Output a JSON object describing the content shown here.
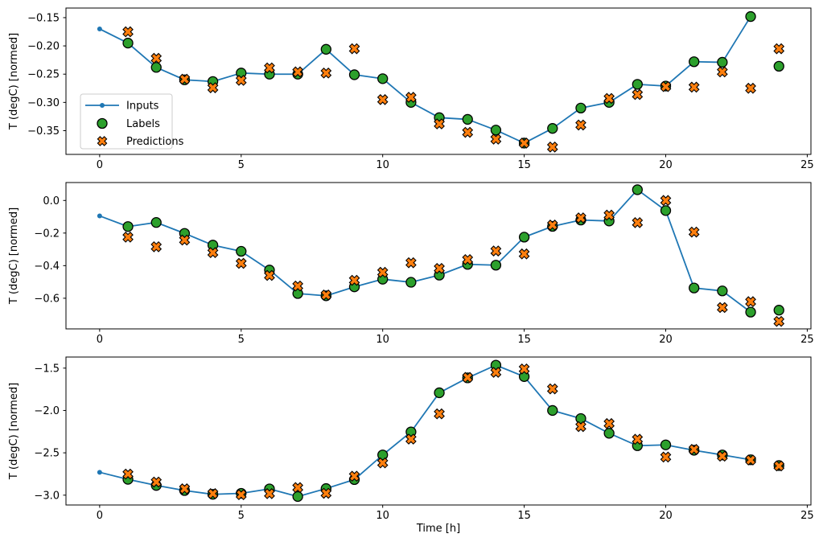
{
  "figure": {
    "xlabel": "Time [h]",
    "ylabel": "T (degC) [normed]",
    "xlim": [
      -1.19,
      25.13
    ],
    "x_ticks": [
      0,
      5,
      10,
      15,
      20,
      25
    ],
    "x_tick_labels": [
      "0",
      "5",
      "10",
      "15",
      "20",
      "25"
    ],
    "colors": {
      "inputs": "#1f77b4",
      "labels": "#2ca02c",
      "predictions": "#ff7f0e",
      "marker_edge": "#000000",
      "spine": "#000000",
      "text": "#000000",
      "legend_border": "#cccccc",
      "background": "#ffffff"
    },
    "legend": {
      "items": [
        {
          "label": "Inputs",
          "marker": "line"
        },
        {
          "label": "Labels",
          "marker": "circle"
        },
        {
          "label": "Predictions",
          "marker": "x"
        }
      ]
    }
  },
  "chart_data": [
    {
      "type": "line",
      "title": "",
      "ylabel": "T (degC) [normed]",
      "ylim": [
        -0.392,
        -0.133
      ],
      "y_ticks": [
        -0.15,
        -0.2,
        -0.25,
        -0.3,
        -0.35
      ],
      "y_tick_labels": [
        "−0.15",
        "−0.20",
        "−0.25",
        "−0.30",
        "−0.35"
      ],
      "series": [
        {
          "name": "Inputs",
          "marker": "dot-line",
          "x": [
            0,
            1,
            2,
            3,
            4,
            5,
            6,
            7,
            8,
            9,
            10,
            11,
            12,
            13,
            14,
            15,
            16,
            17,
            18,
            19,
            20,
            21,
            22,
            23
          ],
          "y": [
            -0.17,
            -0.195,
            -0.238,
            -0.26,
            -0.263,
            -0.248,
            -0.25,
            -0.25,
            -0.206,
            -0.251,
            -0.258,
            -0.3,
            -0.327,
            -0.33,
            -0.349,
            -0.372,
            -0.346,
            -0.31,
            -0.3,
            -0.268,
            -0.271,
            -0.228,
            -0.229,
            -0.148
          ]
        },
        {
          "name": "Labels",
          "marker": "circle",
          "x": [
            1,
            2,
            3,
            4,
            5,
            6,
            7,
            8,
            9,
            10,
            11,
            12,
            13,
            14,
            15,
            16,
            17,
            18,
            19,
            20,
            21,
            22,
            23,
            24
          ],
          "y": [
            -0.195,
            -0.238,
            -0.26,
            -0.263,
            -0.248,
            -0.25,
            -0.25,
            -0.206,
            -0.251,
            -0.258,
            -0.3,
            -0.327,
            -0.33,
            -0.349,
            -0.372,
            -0.346,
            -0.31,
            -0.3,
            -0.268,
            -0.271,
            -0.228,
            -0.229,
            -0.148,
            -0.236
          ]
        },
        {
          "name": "Predictions",
          "marker": "x",
          "x": [
            1,
            2,
            3,
            4,
            5,
            6,
            7,
            8,
            9,
            10,
            11,
            12,
            13,
            14,
            15,
            16,
            17,
            18,
            19,
            20,
            21,
            22,
            23,
            24
          ],
          "y": [
            -0.175,
            -0.222,
            -0.259,
            -0.274,
            -0.261,
            -0.239,
            -0.246,
            -0.248,
            -0.205,
            -0.295,
            -0.291,
            -0.338,
            -0.353,
            -0.365,
            -0.372,
            -0.379,
            -0.34,
            -0.293,
            -0.286,
            -0.272,
            -0.273,
            -0.246,
            -0.275,
            -0.205
          ]
        }
      ]
    },
    {
      "type": "line",
      "title": "",
      "ylabel": "T (degC) [normed]",
      "ylim": [
        -0.788,
        0.11
      ],
      "y_ticks": [
        0.0,
        -0.2,
        -0.4,
        -0.6
      ],
      "y_tick_labels": [
        "0.0",
        "−0.2",
        "−0.4",
        "−0.6"
      ],
      "series": [
        {
          "name": "Inputs",
          "marker": "dot-line",
          "x": [
            0,
            1,
            2,
            3,
            4,
            5,
            6,
            7,
            8,
            9,
            10,
            11,
            12,
            13,
            14,
            15,
            16,
            17,
            18,
            19,
            20,
            21,
            22,
            23
          ],
          "y": [
            -0.095,
            -0.16,
            -0.135,
            -0.202,
            -0.274,
            -0.312,
            -0.427,
            -0.571,
            -0.585,
            -0.53,
            -0.483,
            -0.502,
            -0.458,
            -0.392,
            -0.397,
            -0.225,
            -0.159,
            -0.12,
            -0.126,
            0.066,
            -0.062,
            -0.537,
            -0.555,
            -0.685
          ]
        },
        {
          "name": "Labels",
          "marker": "circle",
          "x": [
            1,
            2,
            3,
            4,
            5,
            6,
            7,
            8,
            9,
            10,
            11,
            12,
            13,
            14,
            15,
            16,
            17,
            18,
            19,
            20,
            21,
            22,
            23,
            24
          ],
          "y": [
            -0.16,
            -0.135,
            -0.202,
            -0.274,
            -0.312,
            -0.427,
            -0.571,
            -0.585,
            -0.53,
            -0.483,
            -0.502,
            -0.458,
            -0.392,
            -0.397,
            -0.225,
            -0.159,
            -0.12,
            -0.126,
            0.066,
            -0.062,
            -0.537,
            -0.555,
            -0.685,
            -0.673
          ]
        },
        {
          "name": "Predictions",
          "marker": "x",
          "x": [
            1,
            2,
            3,
            4,
            5,
            6,
            7,
            8,
            9,
            10,
            11,
            12,
            13,
            14,
            15,
            16,
            17,
            18,
            19,
            20,
            21,
            22,
            23,
            24
          ],
          "y": [
            -0.225,
            -0.284,
            -0.243,
            -0.32,
            -0.386,
            -0.46,
            -0.525,
            -0.58,
            -0.49,
            -0.441,
            -0.382,
            -0.417,
            -0.363,
            -0.31,
            -0.328,
            -0.151,
            -0.107,
            -0.09,
            -0.136,
            0.0,
            -0.194,
            -0.657,
            -0.621,
            -0.742
          ]
        }
      ]
    },
    {
      "type": "line",
      "title": "",
      "ylabel": "T (degC) [normed]",
      "ylim": [
        -3.116,
        -1.369
      ],
      "y_ticks": [
        -1.5,
        -2.0,
        -2.5,
        -3.0
      ],
      "y_tick_labels": [
        "−1.5",
        "−2.0",
        "−2.5",
        "−3.0"
      ],
      "series": [
        {
          "name": "Inputs",
          "marker": "dot-line",
          "x": [
            0,
            1,
            2,
            3,
            4,
            5,
            6,
            7,
            8,
            9,
            10,
            11,
            12,
            13,
            14,
            15,
            16,
            17,
            18,
            19,
            20,
            21,
            22,
            23
          ],
          "y": [
            -2.73,
            -2.813,
            -2.885,
            -2.945,
            -2.99,
            -2.978,
            -2.926,
            -3.016,
            -2.922,
            -2.816,
            -2.525,
            -2.253,
            -1.791,
            -1.615,
            -1.465,
            -1.6,
            -2.0,
            -2.095,
            -2.269,
            -2.416,
            -2.406,
            -2.47,
            -2.525,
            -2.582
          ]
        },
        {
          "name": "Labels",
          "marker": "circle",
          "x": [
            1,
            2,
            3,
            4,
            5,
            6,
            7,
            8,
            9,
            10,
            11,
            12,
            13,
            14,
            15,
            16,
            17,
            18,
            19,
            20,
            21,
            22,
            23,
            24
          ],
          "y": [
            -2.813,
            -2.885,
            -2.945,
            -2.99,
            -2.978,
            -2.926,
            -3.016,
            -2.922,
            -2.816,
            -2.525,
            -2.253,
            -1.791,
            -1.615,
            -1.465,
            -1.6,
            -2.0,
            -2.095,
            -2.269,
            -2.416,
            -2.406,
            -2.47,
            -2.525,
            -2.582,
            -2.65
          ]
        },
        {
          "name": "Predictions",
          "marker": "x",
          "x": [
            1,
            2,
            3,
            4,
            5,
            6,
            7,
            8,
            9,
            10,
            11,
            12,
            13,
            14,
            15,
            16,
            17,
            18,
            19,
            20,
            21,
            22,
            23,
            24
          ],
          "y": [
            -2.751,
            -2.845,
            -2.925,
            -2.982,
            -2.994,
            -2.982,
            -2.91,
            -2.978,
            -2.776,
            -2.619,
            -2.338,
            -2.04,
            -1.61,
            -1.55,
            -1.51,
            -1.745,
            -2.19,
            -2.155,
            -2.34,
            -2.55,
            -2.46,
            -2.54,
            -2.585,
            -2.655
          ]
        }
      ]
    }
  ]
}
